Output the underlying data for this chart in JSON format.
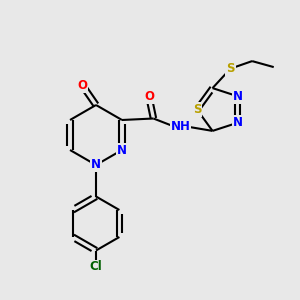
{
  "bg_color": "#e8e8e8",
  "bond_color": "#000000",
  "bond_width": 1.5,
  "atom_colors": {
    "N": "#0000ff",
    "O": "#ff0000",
    "S": "#b8a000",
    "Cl": "#006000",
    "NH": "#0000ff"
  },
  "font_size": 8.5
}
